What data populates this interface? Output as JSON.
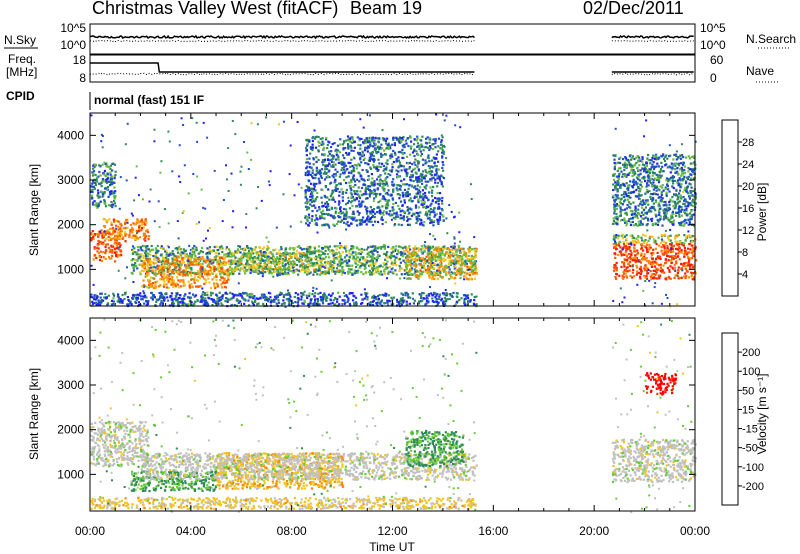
{
  "header": {
    "site": "Christmas Valley West (fitACF)",
    "beam": "Beam 19",
    "date": "02/Dec/2011"
  },
  "nsky_panel": {
    "left_label": "N.Sky",
    "right_label": "N.Search",
    "left_ticks": [
      "10^5",
      "10^0"
    ],
    "right_ticks": [
      "10^5",
      "10^0"
    ]
  },
  "freq_panel": {
    "left_label_1": "Freq.",
    "left_label_2": "[MHz]",
    "right_label": "Nave",
    "left_ticks": [
      "18",
      "8"
    ],
    "right_ticks": [
      "60",
      "0"
    ]
  },
  "cpid": {
    "label": "CPID",
    "text": "normal (fast) 151 IF"
  },
  "axes": {
    "ylabel": "Slant Range [km]",
    "xlabel": "Time UT",
    "xticks": [
      "00:00",
      "04:00",
      "08:00",
      "12:00",
      "16:00",
      "20:00",
      "00:00"
    ],
    "yticks": [
      "1000",
      "2000",
      "3000",
      "4000"
    ],
    "xlim_hours": [
      0,
      24
    ],
    "ylim_km": [
      180,
      4500
    ]
  },
  "power_scale": {
    "title": "Power [dB]",
    "ticks": [
      "4",
      "8",
      "12",
      "16",
      "20",
      "24",
      "28"
    ],
    "colors": [
      "#1e1eff",
      "#1e50c8",
      "#2e8b57",
      "#66bb44",
      "#f2c420",
      "#ff8800",
      "#ff5500",
      "#ff1a00"
    ]
  },
  "velocity_scale": {
    "title": "Velocity [m s⁻¹]",
    "ticks": [
      "200",
      "100",
      "50",
      "15",
      "-15",
      "-50",
      "-100",
      "-200"
    ],
    "colors": [
      "#2020ff",
      "#2a6ad0",
      "#2e8b57",
      "#66cc33",
      "#c0c0c0",
      "#f2c420",
      "#ff8800",
      "#ff4400",
      "#ff0000"
    ]
  },
  "chart_data": {
    "type": "heatmap",
    "x_units": "hours UT",
    "y_units": "km",
    "power_regions": [
      {
        "x": [
          0.0,
          1.2
        ],
        "y": [
          1200,
          1900
        ],
        "level": 0.85
      },
      {
        "x": [
          0.5,
          2.3
        ],
        "y": [
          1650,
          2150
        ],
        "level": 0.75
      },
      {
        "x": [
          0.0,
          1.0
        ],
        "y": [
          2400,
          3400
        ],
        "level": 0.25
      },
      {
        "x": [
          1.6,
          15.3
        ],
        "y": [
          900,
          1550
        ],
        "level": 0.35
      },
      {
        "x": [
          2.0,
          5.5
        ],
        "y": [
          600,
          1300
        ],
        "level": 0.7
      },
      {
        "x": [
          5.5,
          10.0
        ],
        "y": [
          950,
          1400
        ],
        "level": 0.45
      },
      {
        "x": [
          12.5,
          15.3
        ],
        "y": [
          800,
          1500
        ],
        "level": 0.6
      },
      {
        "x": [
          0.0,
          15.3
        ],
        "y": [
          200,
          500
        ],
        "level": 0.15
      },
      {
        "x": [
          8.5,
          14.0
        ],
        "y": [
          2000,
          4000
        ],
        "level": 0.2
      },
      {
        "x": [
          20.7,
          24.0
        ],
        "y": [
          800,
          1600
        ],
        "level": 0.9
      },
      {
        "x": [
          20.7,
          24.0
        ],
        "y": [
          1600,
          1800
        ],
        "level": 0.45
      },
      {
        "x": [
          20.7,
          24.0
        ],
        "y": [
          2000,
          3600
        ],
        "level": 0.25
      }
    ],
    "velocity_regions": [
      {
        "x": [
          0.0,
          2.3
        ],
        "y": [
          1200,
          2200
        ],
        "level": 0.0
      },
      {
        "x": [
          1.6,
          5.0
        ],
        "y": [
          650,
          1100
        ],
        "level": 0.4
      },
      {
        "x": [
          5.0,
          10.0
        ],
        "y": [
          700,
          1500
        ],
        "level": -0.3
      },
      {
        "x": [
          2.0,
          15.3
        ],
        "y": [
          900,
          1500
        ],
        "level": 0.0
      },
      {
        "x": [
          0.0,
          15.3
        ],
        "y": [
          250,
          500
        ],
        "level": -0.2
      },
      {
        "x": [
          12.5,
          14.8
        ],
        "y": [
          1200,
          2000
        ],
        "level": 0.4
      },
      {
        "x": [
          20.7,
          24.0
        ],
        "y": [
          850,
          1800
        ],
        "level": 0.0
      },
      {
        "x": [
          22.0,
          23.2
        ],
        "y": [
          2800,
          3300
        ],
        "level": -1.0
      }
    ],
    "data_gaps_hours": [
      [
        15.3,
        20.7
      ]
    ]
  }
}
